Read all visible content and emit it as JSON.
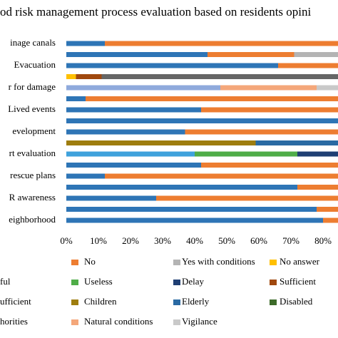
{
  "chart_data": {
    "type": "stacked_barh",
    "title": "od risk management process evaluation based on residents opini",
    "categories": [
      "inage canals",
      null,
      "Evacuation",
      null,
      "r for damage",
      null,
      "Lived events",
      null,
      "evelopment",
      null,
      "rt evaluation",
      null,
      "rescue plans",
      null,
      "R awareness",
      null,
      "eighborhood"
    ],
    "series": [
      {
        "color": "#2e75b6",
        "values": [
          12,
          44,
          66,
          null,
          null,
          6,
          42,
          100,
          37,
          null,
          null,
          42,
          12,
          72,
          28,
          78,
          80
        ]
      },
      {
        "name": "No",
        "color": "#ed7d31",
        "values": [
          88,
          27,
          34,
          null,
          null,
          94,
          58,
          null,
          63,
          null,
          null,
          58,
          88,
          28,
          72,
          22,
          20
        ]
      },
      {
        "name": "Yes with conditions",
        "color": "#b4b4b4",
        "values": [
          null,
          29,
          null,
          null,
          null,
          null,
          null,
          null,
          null,
          null,
          null,
          null,
          null,
          null,
          null,
          null,
          null
        ]
      },
      {
        "name": "No answer",
        "color": "#ffc000",
        "values": [
          null,
          null,
          null,
          3,
          null,
          null,
          null,
          null,
          null,
          null,
          null,
          null,
          null,
          null,
          null,
          null,
          null
        ]
      },
      {
        "name": "ful",
        "color": "#3fa2dc",
        "values": [
          null,
          null,
          null,
          null,
          null,
          null,
          null,
          null,
          null,
          null,
          40,
          null,
          null,
          null,
          null,
          null,
          null
        ]
      },
      {
        "name": "Useless",
        "color": "#4fad48",
        "values": [
          null,
          null,
          null,
          null,
          null,
          null,
          null,
          null,
          null,
          null,
          32,
          null,
          null,
          null,
          null,
          null,
          null
        ]
      },
      {
        "name": "Delay",
        "color": "#1f3f73",
        "values": [
          null,
          null,
          null,
          null,
          null,
          null,
          null,
          null,
          null,
          null,
          28,
          null,
          null,
          null,
          null,
          null,
          null
        ]
      },
      {
        "name": "Sufficient",
        "color": "#a0480e",
        "values": [
          null,
          null,
          null,
          8,
          null,
          null,
          null,
          null,
          null,
          null,
          null,
          null,
          null,
          null,
          null,
          null,
          null
        ]
      },
      {
        "name": "ufficient",
        "color": "#666666",
        "values": [
          null,
          null,
          null,
          89,
          null,
          null,
          null,
          null,
          null,
          null,
          null,
          null,
          null,
          null,
          null,
          null,
          null
        ]
      },
      {
        "name": "Children",
        "color": "#9e7d0e",
        "values": [
          null,
          null,
          null,
          null,
          null,
          null,
          null,
          null,
          null,
          59,
          null,
          null,
          null,
          null,
          null,
          null,
          null
        ]
      },
      {
        "name": "Elderly",
        "color": "#2a6aa3",
        "values": [
          null,
          null,
          null,
          null,
          null,
          null,
          null,
          null,
          null,
          41,
          null,
          null,
          null,
          null,
          null,
          null,
          null
        ]
      },
      {
        "name": "Disabled",
        "color": "#3d6b2a",
        "values": [
          null,
          null,
          null,
          null,
          null,
          null,
          null,
          null,
          null,
          null,
          null,
          null,
          null,
          null,
          null,
          null,
          null
        ]
      },
      {
        "name": "horities",
        "color": "#8faadc",
        "values": [
          null,
          null,
          null,
          null,
          48,
          null,
          null,
          null,
          null,
          null,
          null,
          null,
          null,
          null,
          null,
          null,
          null
        ]
      },
      {
        "name": "Natural conditions",
        "color": "#f4a77a",
        "values": [
          null,
          null,
          null,
          null,
          30,
          null,
          null,
          null,
          null,
          null,
          null,
          null,
          null,
          null,
          null,
          null,
          null
        ]
      },
      {
        "name": "Vigilance",
        "color": "#c9c9c9",
        "values": [
          null,
          null,
          null,
          null,
          22,
          null,
          null,
          null,
          null,
          null,
          null,
          null,
          null,
          null,
          null,
          null,
          null
        ]
      }
    ],
    "xlim": [
      0,
      100
    ],
    "xticks": [
      {
        "value": 0,
        "label": "0%"
      },
      {
        "value": 10,
        "label": "10%"
      },
      {
        "value": 20,
        "label": "20%"
      },
      {
        "value": 30,
        "label": "30%"
      },
      {
        "value": 40,
        "label": "40%"
      },
      {
        "value": 50,
        "label": "50%"
      },
      {
        "value": 60,
        "label": "60%"
      },
      {
        "value": 70,
        "label": "70%"
      },
      {
        "value": 80,
        "label": "80%"
      }
    ]
  }
}
